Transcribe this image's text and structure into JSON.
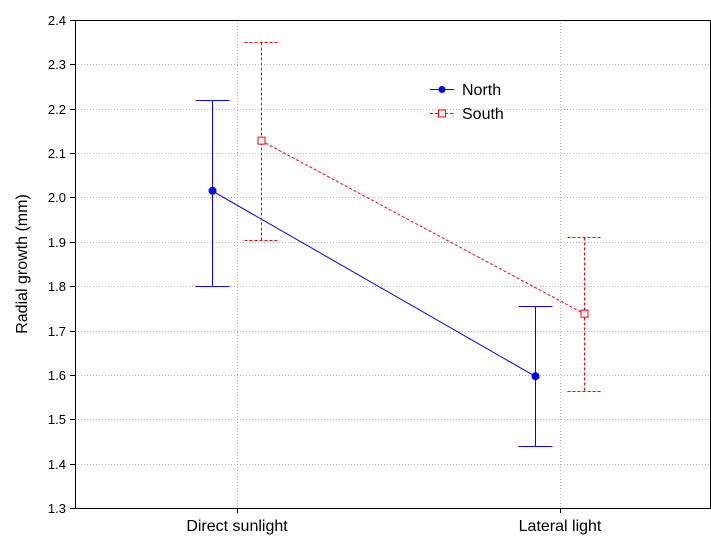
{
  "chart_data": {
    "type": "line",
    "title": "",
    "xlabel": "",
    "ylabel": "Radial growth (mm)",
    "categories": [
      "Direct sunlight",
      "Lateral light"
    ],
    "ylim": [
      1.3,
      2.4
    ],
    "yticks": [
      "1.3",
      "1.4",
      "1.5",
      "1.6",
      "1.7",
      "1.8",
      "1.9",
      "2.0",
      "2.1",
      "2.2",
      "2.3",
      "2.4"
    ],
    "grid": true,
    "legend_position": "top-right",
    "error_bars": true,
    "series": [
      {
        "name": "North",
        "values": [
          2.015,
          1.597
        ],
        "lower": [
          1.8,
          1.44
        ],
        "upper": [
          2.22,
          1.755
        ],
        "color": "#0000ff",
        "marker": "filled-circle",
        "line_style": "solid"
      },
      {
        "name": "South",
        "values": [
          2.128,
          1.738
        ],
        "lower": [
          1.905,
          1.563
        ],
        "upper": [
          2.35,
          1.91
        ],
        "color": "#ff0000",
        "marker": "open-square",
        "line_style": "dashed"
      }
    ]
  }
}
